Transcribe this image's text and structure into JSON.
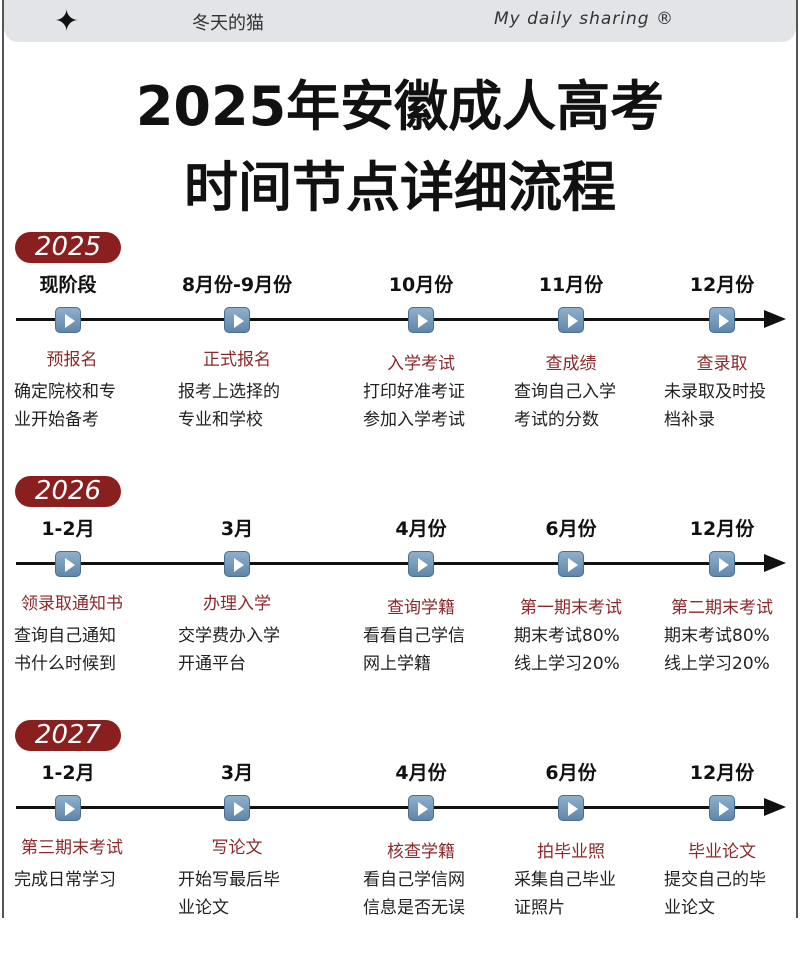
{
  "header": {
    "brand": "冬天的猫",
    "slogan": "My daily sharing ®"
  },
  "title": {
    "line1": "2025年安徽成人高考",
    "line2": "时间节点详细流程"
  },
  "sections": [
    {
      "year": "2025",
      "items": [
        {
          "date": "现阶段",
          "label": "预报名",
          "desc": [
            "确定院校和专",
            "业开始备考"
          ]
        },
        {
          "date": "8月份-9月份",
          "label": "正式报名",
          "desc": [
            "报考上选择的",
            "专业和学校"
          ]
        },
        {
          "date": "10月份",
          "label": "入学考试",
          "desc": [
            "打印好准考证",
            "参加入学考试"
          ]
        },
        {
          "date": "11月份",
          "label": "查成绩",
          "desc": [
            "查询自己入学",
            "考试的分数"
          ]
        },
        {
          "date": "12月份",
          "label": "查录取",
          "desc": [
            "未录取及时投",
            "档补录"
          ]
        }
      ]
    },
    {
      "year": "2026",
      "items": [
        {
          "date": "1-2月",
          "label": "领录取通知书",
          "desc": [
            "查询自己通知",
            "书什么时候到"
          ]
        },
        {
          "date": "3月",
          "label": "办理入学",
          "desc": [
            "交学费办入学",
            "开通平台"
          ]
        },
        {
          "date": "4月份",
          "label": "查询学籍",
          "desc": [
            "看看自己学信",
            "网上学籍"
          ]
        },
        {
          "date": "6月份",
          "label": "第一期末考试",
          "desc": [
            "期末考试80%",
            "线上学习20%"
          ]
        },
        {
          "date": "12月份",
          "label": "第二期末考试",
          "desc": [
            "期末考试80%",
            "线上学习20%"
          ]
        }
      ]
    },
    {
      "year": "2027",
      "items": [
        {
          "date": "1-2月",
          "label": "第三期末考试",
          "desc": [
            "完成日常学习",
            ""
          ]
        },
        {
          "date": "3月",
          "label": "写论文",
          "desc": [
            "开始写最后毕",
            "业论文"
          ]
        },
        {
          "date": "4月份",
          "label": "核查学籍",
          "desc": [
            "看自己学信网",
            "信息是否无误"
          ]
        },
        {
          "date": "6月份",
          "label": "拍毕业照",
          "desc": [
            "采集自己毕业",
            "证照片"
          ]
        },
        {
          "date": "12月份",
          "label": "毕业论文",
          "desc": [
            "提交自己的毕",
            "业论文"
          ]
        }
      ]
    }
  ],
  "colors": {
    "badge": "#8a1f1f",
    "label": "#8a2a2a",
    "marker": "#6f94b6"
  }
}
